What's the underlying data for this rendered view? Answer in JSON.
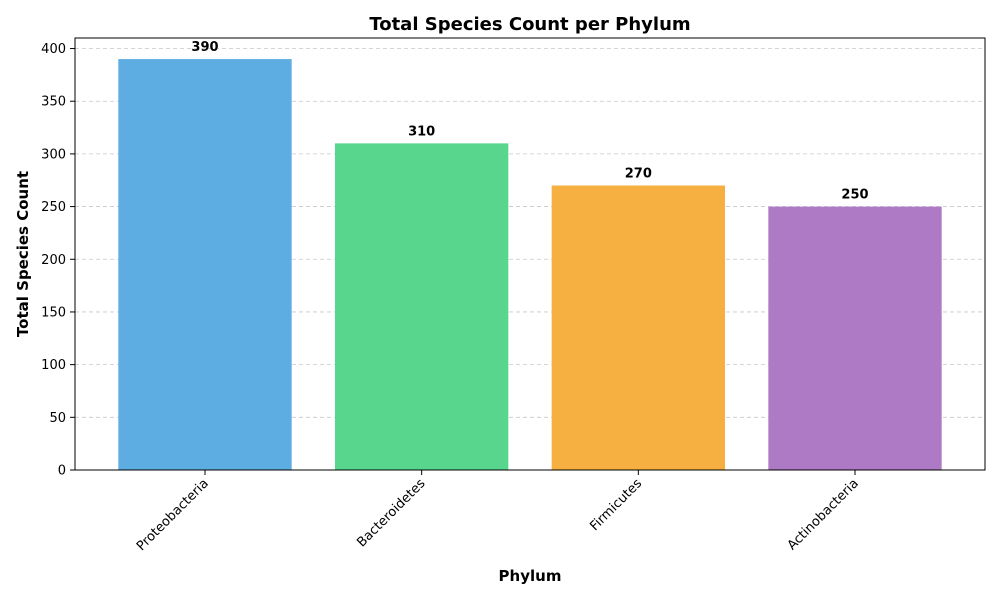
{
  "chart_data": {
    "type": "bar",
    "title": "Total Species Count per Phylum",
    "xlabel": "Phylum",
    "ylabel": "Total Species Count",
    "categories": [
      "Proteobacteria",
      "Bacteroidetes",
      "Firmicutes",
      "Actinobacteria"
    ],
    "values": [
      390,
      310,
      270,
      250
    ],
    "data_labels": [
      "390",
      "310",
      "270",
      "250"
    ],
    "colors": [
      "#5dade2",
      "#58d68d",
      "#f5b041",
      "#af7ac5"
    ],
    "ylim": [
      0,
      410
    ],
    "yticks": [
      0,
      50,
      100,
      150,
      200,
      250,
      300,
      350,
      400
    ],
    "ytick_labels": [
      "0",
      "50",
      "100",
      "150",
      "200",
      "250",
      "300",
      "350",
      "400"
    ],
    "grid": "y-dashed",
    "grid_color": "#c8c8c8",
    "x_tick_rotation": 45
  }
}
